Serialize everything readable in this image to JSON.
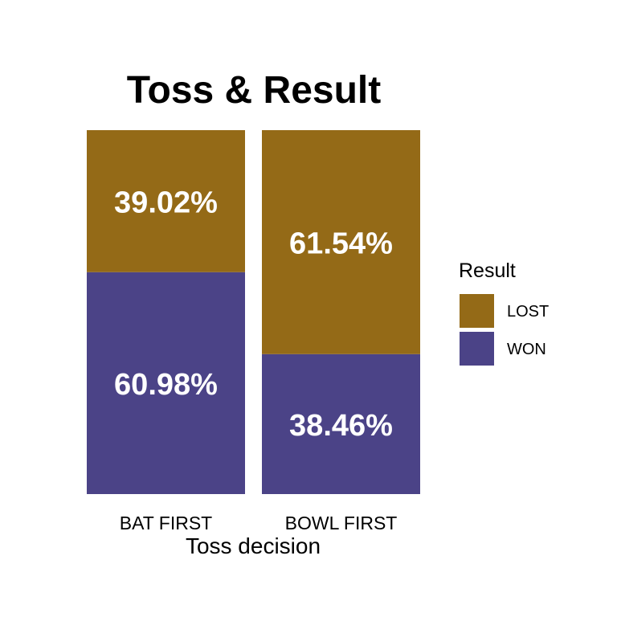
{
  "chart_data": {
    "type": "bar",
    "stacked": true,
    "normalized": true,
    "title": "Toss & Result",
    "xlabel": "Toss decision",
    "ylabel": "",
    "categories": [
      "BAT FIRST",
      "BOWL FIRST"
    ],
    "series": [
      {
        "name": "WON",
        "values": [
          60.98,
          38.46
        ],
        "labels": [
          "60.98%",
          "38.46%"
        ],
        "color": "#4b4387"
      },
      {
        "name": "LOST",
        "values": [
          39.02,
          61.54
        ],
        "labels": [
          "39.02%",
          "61.54%"
        ],
        "color": "#946a17"
      }
    ],
    "ylim": [
      0,
      100
    ],
    "grid": false,
    "legend": {
      "title": "Result",
      "position": "right",
      "entries": [
        "LOST",
        "WON"
      ]
    }
  }
}
